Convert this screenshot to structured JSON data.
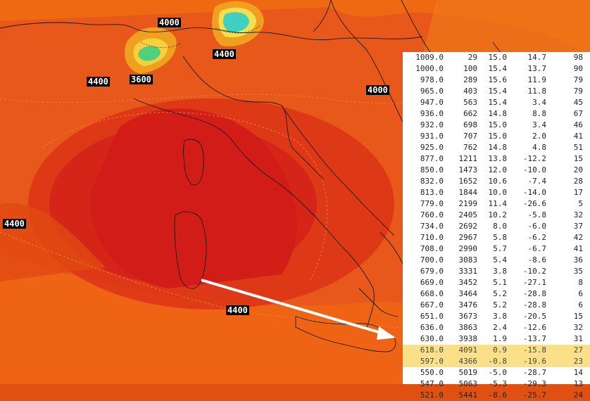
{
  "map": {
    "contour_labels": [
      "4000",
      "4400",
      "3600",
      "4400",
      "4000",
      "4400",
      "4400"
    ],
    "colors": {
      "base": "#e05010",
      "core": "#d41818",
      "outer": "#ef6a12",
      "coast": "#1a1a1a",
      "arrow": "#ffffff"
    }
  },
  "sounding": {
    "columns": [
      "pressure_hpa",
      "height_m",
      "temperature_c",
      "dewpoint_c",
      "relative_humidity_pct"
    ],
    "rows": [
      [
        "1009.0",
        "29",
        "15.0",
        "14.7",
        "98"
      ],
      [
        "1000.0",
        "100",
        "15.4",
        "13.7",
        "90"
      ],
      [
        "978.0",
        "289",
        "15.6",
        "11.9",
        "79"
      ],
      [
        "965.0",
        "403",
        "15.4",
        "11.8",
        "79"
      ],
      [
        "947.0",
        "563",
        "15.4",
        "3.4",
        "45"
      ],
      [
        "936.0",
        "662",
        "14.8",
        "8.8",
        "67"
      ],
      [
        "932.0",
        "698",
        "15.0",
        "3.4",
        "46"
      ],
      [
        "931.0",
        "707",
        "15.0",
        "2.0",
        "41"
      ],
      [
        "925.0",
        "762",
        "14.8",
        "4.8",
        "51"
      ],
      [
        "877.0",
        "1211",
        "13.8",
        "-12.2",
        "15"
      ],
      [
        "850.0",
        "1473",
        "12.0",
        "-10.0",
        "20"
      ],
      [
        "832.0",
        "1652",
        "10.6",
        "-7.4",
        "28"
      ],
      [
        "813.0",
        "1844",
        "10.0",
        "-14.0",
        "17"
      ],
      [
        "779.0",
        "2199",
        "11.4",
        "-26.6",
        "5"
      ],
      [
        "760.0",
        "2405",
        "10.2",
        "-5.8",
        "32"
      ],
      [
        "734.0",
        "2692",
        "8.0",
        "-6.0",
        "37"
      ],
      [
        "710.0",
        "2967",
        "5.8",
        "-6.2",
        "42"
      ],
      [
        "708.0",
        "2990",
        "5.7",
        "-6.7",
        "41"
      ],
      [
        "700.0",
        "3083",
        "5.4",
        "-8.6",
        "36"
      ],
      [
        "679.0",
        "3331",
        "3.8",
        "-10.2",
        "35"
      ],
      [
        "669.0",
        "3452",
        "5.1",
        "-27.1",
        "8"
      ],
      [
        "668.0",
        "3464",
        "5.2",
        "-28.8",
        "6"
      ],
      [
        "667.0",
        "3476",
        "5.2",
        "-28.8",
        "6"
      ],
      [
        "651.0",
        "3673",
        "3.8",
        "-20.5",
        "15"
      ],
      [
        "636.0",
        "3863",
        "2.4",
        "-12.6",
        "32"
      ],
      [
        "630.0",
        "3938",
        "1.9",
        "-13.7",
        "31"
      ],
      [
        "618.0",
        "4091",
        "0.9",
        "-15.8",
        "27"
      ],
      [
        "597.0",
        "4366",
        "-0.8",
        "-19.6",
        "23"
      ],
      [
        "550.0",
        "5019",
        "-5.0",
        "-28.7",
        "14"
      ],
      [
        "547.0",
        "5063",
        "-5.3",
        "-29.3",
        "13"
      ],
      [
        "521.0",
        "5441",
        "-8.6",
        "-25.7",
        "24"
      ]
    ],
    "highlighted_rows": [
      26,
      27
    ],
    "highlight_color": "#fbe08a"
  }
}
